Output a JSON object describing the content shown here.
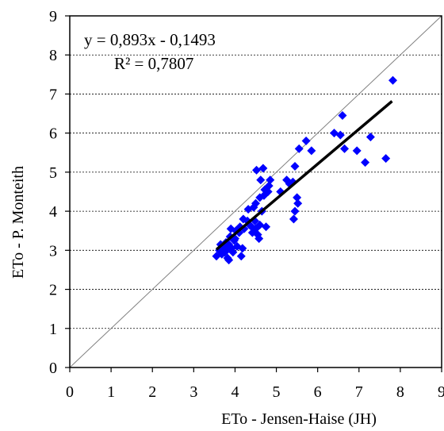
{
  "chart_data": {
    "type": "scatter",
    "title": "",
    "xlabel": "ETo - Jensen-Haise (JH)",
    "ylabel": "ETo - P. Monteith",
    "xlim": [
      0,
      9
    ],
    "ylim": [
      0,
      9
    ],
    "x_ticks": [
      "0",
      "1",
      "2",
      "3",
      "4",
      "5",
      "6",
      "7",
      "8",
      "9"
    ],
    "y_ticks": [
      "0",
      "1",
      "2",
      "3",
      "4",
      "5",
      "6",
      "7",
      "8",
      "9"
    ],
    "grid": "horizontal-dashed",
    "marker": "diamond",
    "colors": {
      "points": "#0000ff",
      "trend": "#000000",
      "identity": "#808080"
    },
    "annotations": {
      "equation": "y = 0,893x - 0,1493",
      "r2": "R² = 0,7807"
    },
    "trendline": {
      "slope": 0.893,
      "intercept": -0.1493,
      "x_range": [
        3.55,
        7.8
      ]
    },
    "identity_line": {
      "from": [
        0,
        0
      ],
      "to": [
        9,
        9
      ]
    },
    "points": [
      [
        3.55,
        2.85
      ],
      [
        3.62,
        3.0
      ],
      [
        3.65,
        3.15
      ],
      [
        3.68,
        2.9
      ],
      [
        3.7,
        3.1
      ],
      [
        3.72,
        3.05
      ],
      [
        3.75,
        2.95
      ],
      [
        3.78,
        3.2
      ],
      [
        3.8,
        3.0
      ],
      [
        3.82,
        2.8
      ],
      [
        3.85,
        2.75
      ],
      [
        3.85,
        3.15
      ],
      [
        3.88,
        3.35
      ],
      [
        3.9,
        3.55
      ],
      [
        3.92,
        3.05
      ],
      [
        3.95,
        2.95
      ],
      [
        3.98,
        3.25
      ],
      [
        4.0,
        3.3
      ],
      [
        4.02,
        3.5
      ],
      [
        4.05,
        3.1
      ],
      [
        4.1,
        3.45
      ],
      [
        4.12,
        3.6
      ],
      [
        4.15,
        2.85
      ],
      [
        4.18,
        3.05
      ],
      [
        4.2,
        3.8
      ],
      [
        4.22,
        3.55
      ],
      [
        4.3,
        3.75
      ],
      [
        4.32,
        4.05
      ],
      [
        4.35,
        3.65
      ],
      [
        4.4,
        3.6
      ],
      [
        4.42,
        3.45
      ],
      [
        4.45,
        4.1
      ],
      [
        4.48,
        3.75
      ],
      [
        4.5,
        4.2
      ],
      [
        4.5,
        3.55
      ],
      [
        4.52,
        5.05
      ],
      [
        4.55,
        3.4
      ],
      [
        4.58,
        3.3
      ],
      [
        4.6,
        3.65
      ],
      [
        4.6,
        4.35
      ],
      [
        4.62,
        4.8
      ],
      [
        4.65,
        4.0
      ],
      [
        4.68,
        5.1
      ],
      [
        4.7,
        4.4
      ],
      [
        4.72,
        4.55
      ],
      [
        4.75,
        3.6
      ],
      [
        4.8,
        4.5
      ],
      [
        4.82,
        4.65
      ],
      [
        4.85,
        4.8
      ],
      [
        5.1,
        4.5
      ],
      [
        5.25,
        4.8
      ],
      [
        5.32,
        4.7
      ],
      [
        5.4,
        4.75
      ],
      [
        5.42,
        3.8
      ],
      [
        5.45,
        5.15
      ],
      [
        5.45,
        4.0
      ],
      [
        5.5,
        4.35
      ],
      [
        5.52,
        4.2
      ],
      [
        5.55,
        5.6
      ],
      [
        5.72,
        5.8
      ],
      [
        5.85,
        5.55
      ],
      [
        6.4,
        6.0
      ],
      [
        6.55,
        5.95
      ],
      [
        6.6,
        6.45
      ],
      [
        6.65,
        5.6
      ],
      [
        6.95,
        5.55
      ],
      [
        7.15,
        5.25
      ],
      [
        7.28,
        5.9
      ],
      [
        7.65,
        5.35
      ],
      [
        7.82,
        7.35
      ]
    ]
  }
}
